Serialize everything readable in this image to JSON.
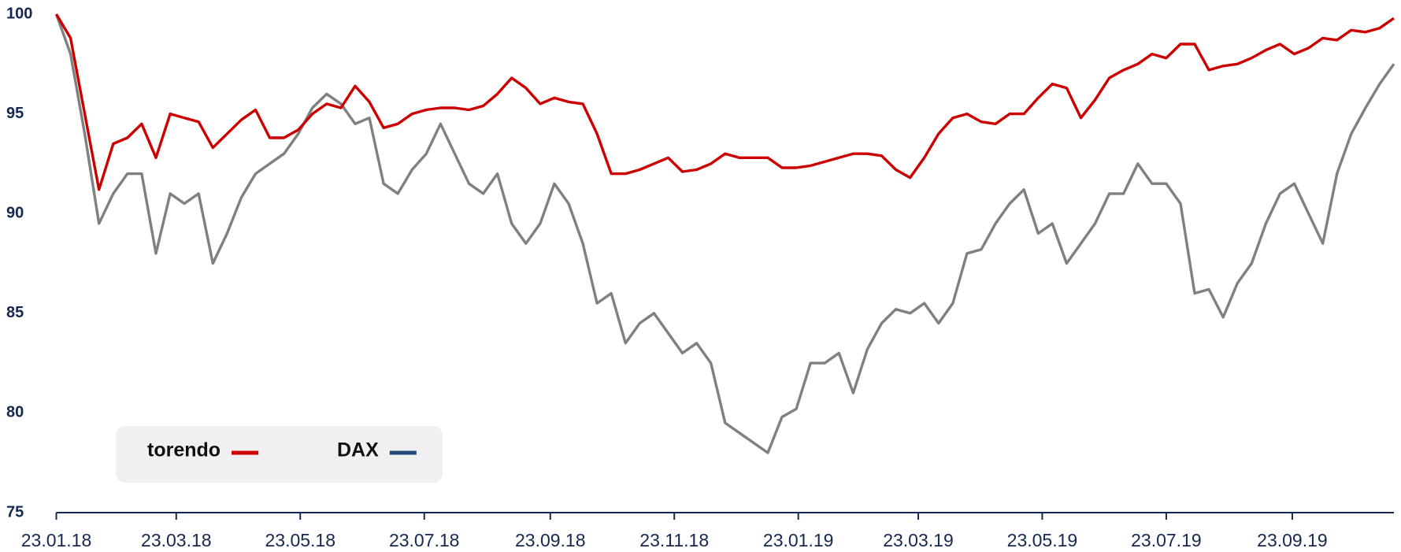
{
  "chart_data": {
    "type": "line",
    "x": [
      "2018-01-23",
      "2018-01-30",
      "2018-02-06",
      "2018-02-13",
      "2018-02-20",
      "2018-02-27",
      "2018-03-06",
      "2018-03-13",
      "2018-03-20",
      "2018-03-27",
      "2018-04-03",
      "2018-04-10",
      "2018-04-17",
      "2018-04-24",
      "2018-05-01",
      "2018-05-08",
      "2018-05-15",
      "2018-05-22",
      "2018-05-29",
      "2018-06-05",
      "2018-06-12",
      "2018-06-19",
      "2018-06-26",
      "2018-07-03",
      "2018-07-10",
      "2018-07-17",
      "2018-07-24",
      "2018-07-31",
      "2018-08-07",
      "2018-08-14",
      "2018-08-21",
      "2018-08-28",
      "2018-09-04",
      "2018-09-11",
      "2018-09-18",
      "2018-09-25",
      "2018-10-02",
      "2018-10-09",
      "2018-10-16",
      "2018-10-23",
      "2018-10-30",
      "2018-11-06",
      "2018-11-13",
      "2018-11-20",
      "2018-11-27",
      "2018-12-04",
      "2018-12-11",
      "2018-12-18",
      "2018-12-25",
      "2019-01-01",
      "2019-01-08",
      "2019-01-15",
      "2019-01-22",
      "2019-01-29",
      "2019-02-05",
      "2019-02-12",
      "2019-02-19",
      "2019-02-26",
      "2019-03-05",
      "2019-03-12",
      "2019-03-19",
      "2019-03-26",
      "2019-04-02",
      "2019-04-09",
      "2019-04-16",
      "2019-04-23",
      "2019-04-30",
      "2019-05-07",
      "2019-05-14",
      "2019-05-21",
      "2019-05-28",
      "2019-06-04",
      "2019-06-11",
      "2019-06-18",
      "2019-06-25",
      "2019-07-02",
      "2019-07-09",
      "2019-07-16",
      "2019-07-23",
      "2019-07-30",
      "2019-08-06",
      "2019-08-13",
      "2019-08-20",
      "2019-08-27",
      "2019-09-03",
      "2019-09-10",
      "2019-09-17",
      "2019-09-24",
      "2019-10-01",
      "2019-10-08",
      "2019-10-15",
      "2019-10-22",
      "2019-10-29",
      "2019-11-05",
      "2019-11-12"
    ],
    "series": [
      {
        "name": "torendo",
        "color": "#cc0000",
        "legend_color": "#cc0000",
        "values": [
          100,
          98.8,
          95,
          91.2,
          93.5,
          93.8,
          94.5,
          92.8,
          95,
          94.8,
          94.6,
          93.3,
          94,
          94.7,
          95.2,
          93.8,
          93.8,
          94.2,
          95,
          95.5,
          95.3,
          96.4,
          95.6,
          94.3,
          94.5,
          95,
          95.2,
          95.3,
          95.3,
          95.2,
          95.4,
          96,
          96.8,
          96.3,
          95.5,
          95.8,
          95.6,
          95.5,
          94,
          92,
          92,
          92.2,
          92.5,
          92.8,
          92.1,
          92.2,
          92.5,
          93,
          92.8,
          92.8,
          92.8,
          92.3,
          92.3,
          92.4,
          92.6,
          92.8,
          93,
          93,
          92.9,
          92.2,
          91.8,
          92.8,
          94,
          94.8,
          95,
          94.6,
          94.5,
          95,
          95,
          95.8,
          96.5,
          96.3,
          94.8,
          95.7,
          96.8,
          97.2,
          97.5,
          98,
          97.8,
          98.5,
          98.5,
          97.2,
          97.4,
          97.5,
          97.8,
          98.2,
          98.5,
          98,
          98.3,
          98.8,
          98.7,
          99.2,
          99.1,
          99.3,
          99.8
        ]
      },
      {
        "name": "DAX",
        "color": "#808080",
        "legend_color": "#1f4a7a",
        "values": [
          100,
          98,
          94,
          89.5,
          91,
          92,
          92,
          88,
          91,
          90.5,
          91,
          87.5,
          89,
          90.8,
          92,
          92.5,
          93,
          94,
          95.3,
          96,
          95.5,
          94.5,
          94.8,
          91.5,
          91,
          92.2,
          93,
          94.5,
          93,
          91.5,
          91,
          92,
          89.5,
          88.5,
          89.5,
          91.5,
          90.5,
          88.5,
          85.5,
          86,
          83.5,
          84.5,
          85,
          84,
          83,
          83.5,
          82.5,
          79.5,
          79,
          78.5,
          78,
          79.8,
          80.2,
          82.5,
          82.5,
          83,
          81,
          83.2,
          84.5,
          85.2,
          85,
          85.5,
          84.5,
          85.5,
          88,
          88.2,
          89.5,
          90.5,
          91.2,
          89,
          89.5,
          87.5,
          88.5,
          89.5,
          91,
          91,
          92.5,
          91.5,
          91.5,
          90.5,
          86,
          86.2,
          84.8,
          86.5,
          87.5,
          89.5,
          91,
          91.5,
          90,
          88.5,
          92,
          94,
          95.3,
          96.5,
          97.5
        ]
      }
    ],
    "xlim": [
      "2018-01-23",
      "2019-11-12"
    ],
    "xticks": [
      {
        "value": "2018-01-23",
        "label": "23.01.18"
      },
      {
        "value": "2018-03-23",
        "label": "23.03.18"
      },
      {
        "value": "2018-05-23",
        "label": "23.05.18"
      },
      {
        "value": "2018-07-23",
        "label": "23.07.18"
      },
      {
        "value": "2018-09-23",
        "label": "23.09.18"
      },
      {
        "value": "2018-11-23",
        "label": "23.11.18"
      },
      {
        "value": "2019-01-23",
        "label": "23.01.19"
      },
      {
        "value": "2019-03-23",
        "label": "23.03.19"
      },
      {
        "value": "2019-05-23",
        "label": "23.05.19"
      },
      {
        "value": "2019-07-23",
        "label": "23.07.19"
      },
      {
        "value": "2019-09-23",
        "label": "23.09.19"
      }
    ],
    "ylim": [
      75,
      100
    ],
    "yticks": [
      75,
      80,
      85,
      90,
      95,
      100
    ],
    "grid": false,
    "legend": "lower left"
  }
}
